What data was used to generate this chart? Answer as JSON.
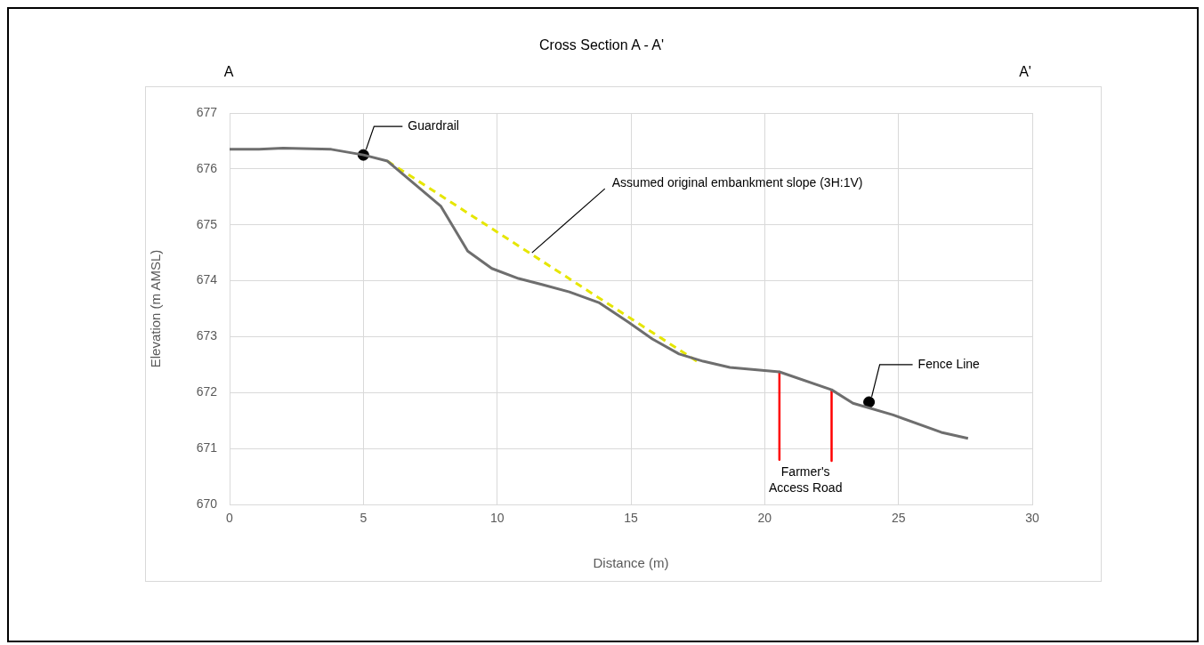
{
  "chart_data": {
    "type": "line",
    "title": "Cross Section A - A'",
    "xlabel": "Distance (m)",
    "ylabel": "Elevation (m AMSL)",
    "xlim": [
      0,
      30
    ],
    "xticks": [
      0,
      5,
      10,
      15,
      20,
      25,
      30
    ],
    "ylim": [
      670,
      677
    ],
    "yticks": [
      670,
      671,
      672,
      673,
      674,
      675,
      676,
      677
    ],
    "grid": true,
    "legend": false,
    "marker": "none",
    "series": [
      {
        "color": "#6e6e6e",
        "line_style": "solid",
        "x": [
          0,
          1.1,
          2,
          3.8,
          5,
          5.9,
          7.9,
          8.9,
          9.8,
          10.8,
          11.7,
          12.7,
          13.8,
          14.9,
          15.8,
          16.8,
          17.7,
          18.7,
          20.55,
          22.5,
          23.3,
          24.8,
          26.6,
          27.6
        ],
        "values": [
          676.35,
          676.35,
          676.37,
          676.35,
          676.25,
          676.14,
          675.33,
          674.53,
          674.22,
          674.04,
          673.93,
          673.8,
          673.61,
          673.26,
          672.96,
          672.69,
          672.56,
          672.45,
          672.37,
          672.05,
          671.81,
          671.6,
          671.29,
          671.18
        ]
      },
      {
        "type": "line",
        "color": "#e6e600",
        "line_style": "dashed",
        "x": [
          5.9,
          17.5
        ],
        "values": [
          676.14,
          672.55
        ]
      },
      {
        "type": "line",
        "color": "#ff0000",
        "line_style": "solid",
        "x": [
          20.55,
          20.55
        ],
        "values": [
          672.37,
          670.8
        ]
      },
      {
        "type": "line",
        "color": "#ff0000",
        "line_style": "solid",
        "x": [
          22.5,
          22.5
        ],
        "values": [
          672.05,
          670.78
        ]
      },
      {
        "type": "scatter",
        "color": "#000000",
        "marker": "circle",
        "x": [
          5,
          23.9
        ],
        "values": [
          676.25,
          671.83
        ]
      }
    ],
    "annotations": [
      "A",
      "A'",
      {
        "text": "Guardrail",
        "x": 5,
        "y": 676.25
      },
      {
        "text": "Assumed original embankment slope (3H:1V)",
        "x": 11.3,
        "y": 674.5
      },
      {
        "text": "Fence Line",
        "x": 23.9,
        "y": 671.83
      },
      "Farmer's Access Road"
    ]
  }
}
